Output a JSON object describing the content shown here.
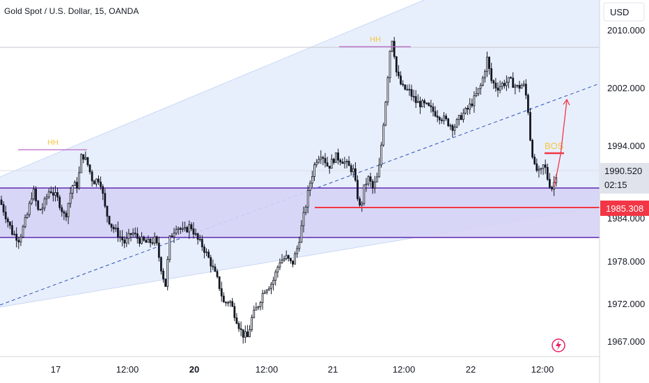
{
  "title": "Gold Spot / U.S. Dollar, 15, OANDA",
  "currency": "USD",
  "price_badge": {
    "value": "1990.520",
    "countdown": "02:15",
    "color": "#e0e3eb"
  },
  "level_badge": {
    "value": "1985.308",
    "color": "#f23645"
  },
  "colors": {
    "up": "#131722",
    "down": "#131722",
    "channel_fill": "#e8effc",
    "zone_fill": "#d6d3f5",
    "zone_line": "#7e57c2",
    "level": "#f23645",
    "hh_line": "#ba68c8",
    "label_yellow": "#f5c542"
  },
  "annotations": {
    "hh1": "HH",
    "hh2": "HH",
    "bos": "BOS"
  },
  "chart_data": {
    "type": "candlestick",
    "title": "Gold Spot / U.S. Dollar, 15, OANDA",
    "currency": "USD",
    "y_ticks": [
      2010,
      2002,
      1994,
      1984,
      1978,
      1972,
      1967
    ],
    "y_tick_labels": [
      "2010.000",
      "2002.000",
      "1994.000",
      "1984.000",
      "1978.000",
      "1972.000",
      "1967.000"
    ],
    "x_tick_labels": [
      "17",
      "12:00",
      "20",
      "12:00",
      "21",
      "12:00",
      "22",
      "12:00"
    ],
    "x_tick_bold": [
      "20"
    ],
    "last_price": 1990.52,
    "highlighted_level": 1985.308,
    "demand_zone": [
      1981.0,
      1988.0
    ],
    "path": [
      [
        0,
        1986.5
      ],
      [
        10,
        1984
      ],
      [
        18,
        1982
      ],
      [
        28,
        1981
      ],
      [
        40,
        1984.5
      ],
      [
        48,
        1988
      ],
      [
        55,
        1985
      ],
      [
        62,
        1985.5
      ],
      [
        72,
        1988
      ],
      [
        84,
        1986.5
      ],
      [
        94,
        1984
      ],
      [
        104,
        1988.5
      ],
      [
        112,
        1988.5
      ],
      [
        118,
        1993
      ],
      [
        126,
        1991.5
      ],
      [
        134,
        1989
      ],
      [
        144,
        1989.5
      ],
      [
        152,
        1985
      ],
      [
        160,
        1983
      ],
      [
        168,
        1982
      ],
      [
        180,
        1980.5
      ],
      [
        190,
        1982
      ],
      [
        200,
        1981
      ],
      [
        212,
        1980.5
      ],
      [
        224,
        1981
      ],
      [
        232,
        1977
      ],
      [
        238,
        1974.5
      ],
      [
        244,
        1981
      ],
      [
        254,
        1983
      ],
      [
        264,
        1982
      ],
      [
        274,
        1983
      ],
      [
        284,
        1981
      ],
      [
        292,
        1980
      ],
      [
        302,
        1978
      ],
      [
        314,
        1975
      ],
      [
        322,
        1972
      ],
      [
        330,
        1972.5
      ],
      [
        340,
        1970
      ],
      [
        348,
        1968
      ],
      [
        356,
        1967.5
      ],
      [
        362,
        1970
      ],
      [
        372,
        1972
      ],
      [
        380,
        1974
      ],
      [
        392,
        1975
      ],
      [
        402,
        1978
      ],
      [
        412,
        1978.5
      ],
      [
        420,
        1977.5
      ],
      [
        428,
        1980
      ],
      [
        434,
        1983
      ],
      [
        440,
        1986
      ],
      [
        446,
        1989
      ],
      [
        454,
        1992
      ],
      [
        462,
        1993
      ],
      [
        472,
        1991
      ],
      [
        482,
        1992.5
      ],
      [
        492,
        1992
      ],
      [
        502,
        1991
      ],
      [
        508,
        1990.5
      ],
      [
        512,
        1988
      ],
      [
        518,
        1985
      ],
      [
        524,
        1988.5
      ],
      [
        530,
        1989.5
      ],
      [
        536,
        1988
      ],
      [
        544,
        1990
      ],
      [
        550,
        1996
      ],
      [
        556,
        2002
      ],
      [
        560,
        2007
      ],
      [
        564,
        2009
      ],
      [
        570,
        2004
      ],
      [
        578,
        2002
      ],
      [
        588,
        2001.5
      ],
      [
        598,
        2000
      ],
      [
        612,
        1999.5
      ],
      [
        626,
        1998.5
      ],
      [
        640,
        1997.5
      ],
      [
        652,
        1996.5
      ],
      [
        662,
        1998
      ],
      [
        672,
        1999
      ],
      [
        682,
        2000.5
      ],
      [
        692,
        2002.5
      ],
      [
        700,
        2006
      ],
      [
        706,
        2003
      ],
      [
        714,
        2002
      ],
      [
        722,
        2002.5
      ],
      [
        732,
        2003
      ],
      [
        744,
        2002
      ],
      [
        752,
        2002.5
      ],
      [
        758,
        2000
      ],
      [
        762,
        1995
      ],
      [
        768,
        1991
      ],
      [
        776,
        1990
      ],
      [
        782,
        1991.5
      ],
      [
        788,
        1989
      ],
      [
        794,
        1988
      ],
      [
        800,
        1990.5
      ]
    ]
  }
}
